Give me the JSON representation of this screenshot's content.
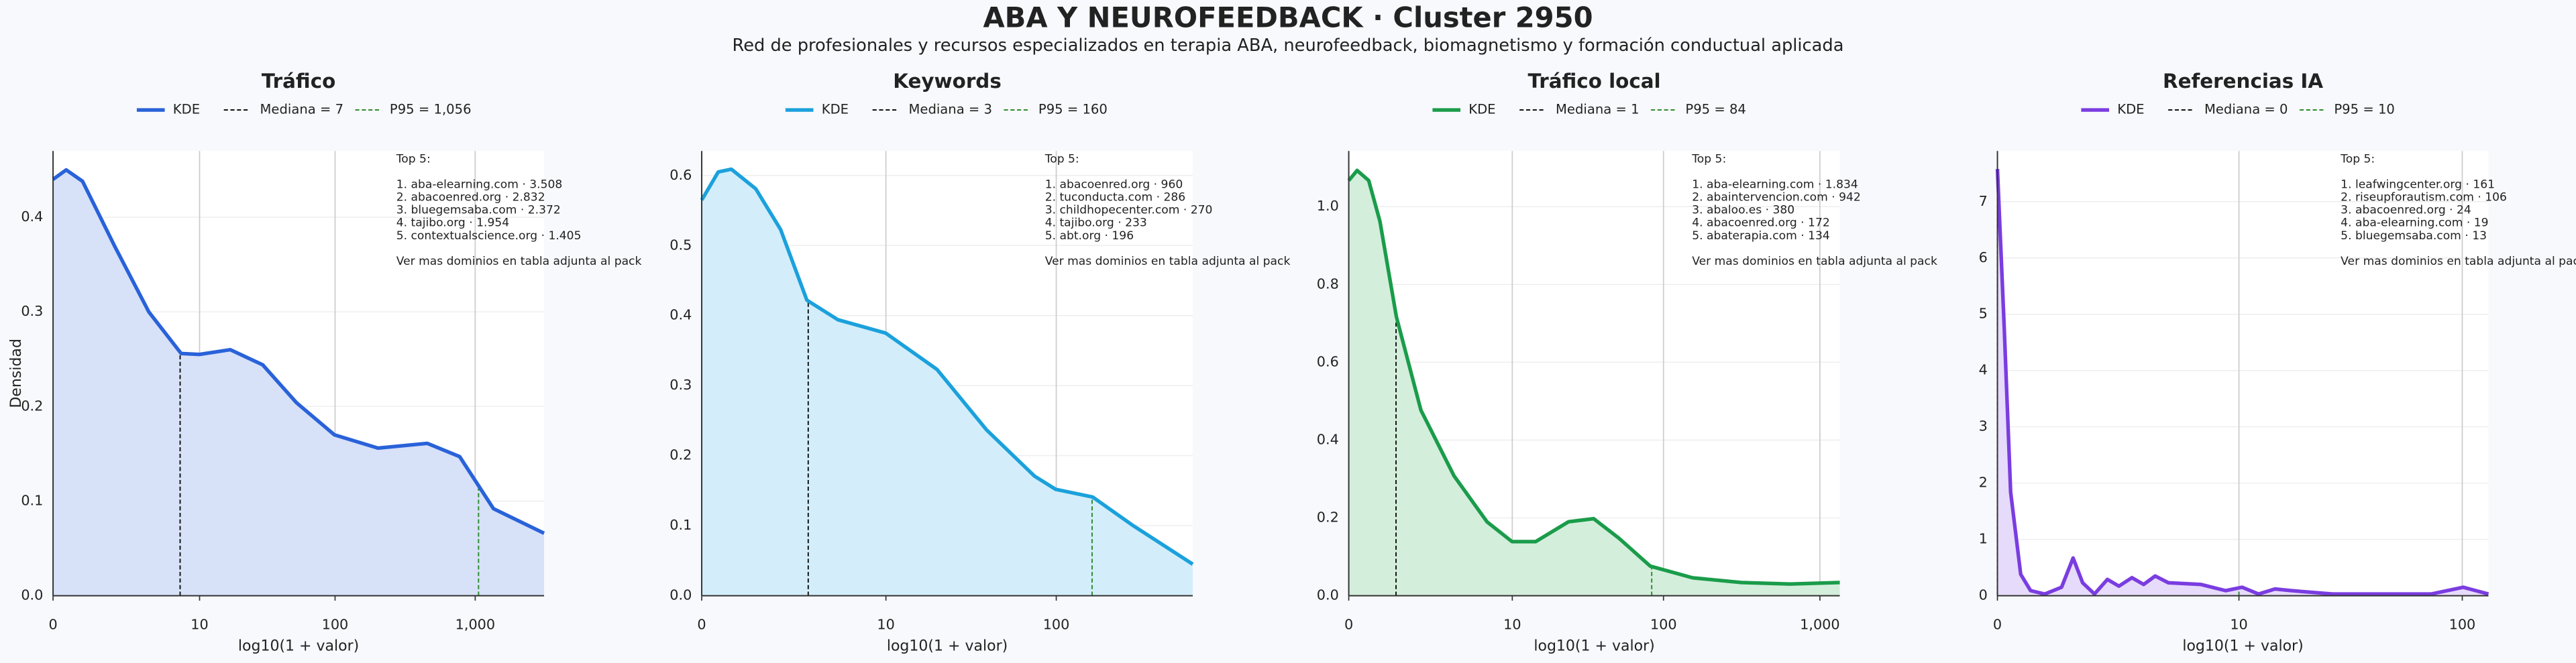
{
  "title": "ABA Y NEUROFEEDBACK · Cluster 2950",
  "subtitle": "Red de profesionales y recursos especializados en terapia ABA, neurofeedback, biomagnetismo y formación conductual aplicada",
  "chart_data": [
    {
      "type": "line",
      "title": "Tráfico",
      "xlabel": "log10(1 + valor)",
      "ylabel": "Densidad",
      "xscale": "log1p",
      "xlim": [
        0,
        3089
      ],
      "xticks": [
        0,
        10,
        100,
        {
          "value": 1000,
          "label": "1,000"
        }
      ],
      "ylim": [
        0,
        0.47
      ],
      "yticks": [
        {
          "value": 0,
          "label": "0.0"
        },
        0.1,
        0.2,
        0.3,
        0.4
      ],
      "grid": true,
      "x": [
        0,
        0.24,
        0.62,
        1.75,
        3.79,
        7.13,
        9.96,
        17.2,
        29.9,
        52.7,
        99,
        203,
        456,
        775,
        1348,
        3089
      ],
      "series": [
        {
          "name": "KDE",
          "color": "#2962d9",
          "fill": "#d7e1f8",
          "values": [
            0.44,
            0.45,
            0.438,
            0.369,
            0.3,
            0.256,
            0.255,
            0.26,
            0.244,
            0.204,
            0.17,
            0.156,
            0.161,
            0.147,
            0.092,
            0.066
          ]
        }
      ],
      "median": {
        "name": "Mediana = 7",
        "value": 7,
        "color": "#111111"
      },
      "p95": {
        "name": "P95 = 1,056",
        "value": 1056,
        "color": "#2e8b2e"
      },
      "annotation": {
        "title": "Top 5:",
        "lines": [
          "1. aba-elearning.com · 3.508",
          "2. abacoenred.org · 2.832",
          "3. bluegemsaba.com · 2.372",
          "4. tajibo.org · 1.954",
          "5. contextualscience.org · 1.405"
        ],
        "note": "Ver mas dominios en tabla adjunta al pack"
      }
    },
    {
      "type": "line",
      "title": "Keywords",
      "xlabel": "log10(1 + valor)",
      "xscale": "log1p",
      "xlim": [
        0,
        596
      ],
      "xticks": [
        0,
        10,
        100
      ],
      "ylim": [
        0,
        0.635
      ],
      "yticks": [
        {
          "value": 0,
          "label": "0.0"
        },
        0.1,
        0.2,
        0.3,
        0.4,
        0.5,
        0.6
      ],
      "grid": true,
      "x": [
        0,
        0.24,
        0.47,
        1.02,
        1.79,
        2.93,
        4.89,
        9.96,
        20.4,
        39.7,
        74.9,
        99,
        161,
        274,
        596
      ],
      "series": [
        {
          "name": "KDE",
          "color": "#1ba1dc",
          "fill": "#d3eefa",
          "values": [
            0.565,
            0.605,
            0.609,
            0.581,
            0.523,
            0.422,
            0.394,
            0.375,
            0.323,
            0.237,
            0.171,
            0.152,
            0.141,
            0.1,
            0.045
          ]
        }
      ],
      "median": {
        "name": "Mediana = 3",
        "value": 3,
        "color": "#111111"
      },
      "p95": {
        "name": "P95 = 160",
        "value": 160,
        "color": "#2e8b2e"
      },
      "annotation": {
        "title": "Top 5:",
        "lines": [
          "1. abacoenred.org · 960",
          "2. tuconducta.com · 286",
          "3. childhopecenter.com · 270",
          "4. tajibo.org · 233",
          "5. abt.org · 196"
        ],
        "note": "Ver mas dominios en tabla adjunta al pack"
      }
    },
    {
      "type": "line",
      "title": "Tráfico local",
      "xlabel": "log10(1 + valor)",
      "xscale": "log1p",
      "xlim": [
        0,
        1339
      ],
      "xticks": [
        0,
        10,
        100,
        {
          "value": 1000,
          "label": "1,000"
        }
      ],
      "ylim": [
        0,
        1.143
      ],
      "yticks": [
        {
          "value": 0,
          "label": "0.0"
        },
        0.2,
        0.4,
        0.6,
        0.8,
        {
          "value": 1,
          "label": "1.0"
        }
      ],
      "grid": true,
      "x": [
        0,
        0.13,
        0.34,
        0.58,
        1.01,
        1.88,
        3.68,
        6.59,
        9.96,
        14.5,
        24.1,
        35.3,
        51.5,
        82.2,
        154,
        315,
        645,
        1339
      ],
      "series": [
        {
          "name": "KDE",
          "color": "#1a9c4a",
          "fill": "#d4eedc",
          "values": [
            1.067,
            1.093,
            1.067,
            0.962,
            0.717,
            0.477,
            0.308,
            0.19,
            0.139,
            0.139,
            0.19,
            0.198,
            0.148,
            0.076,
            0.046,
            0.034,
            0.03,
            0.034
          ]
        }
      ],
      "median": {
        "name": "Mediana = 1",
        "value": 1,
        "color": "#111111"
      },
      "p95": {
        "name": "P95 = 84",
        "value": 84,
        "color": "#2e8b2e"
      },
      "annotation": {
        "title": "Top 5:",
        "lines": [
          "1. aba-elearning.com · 1.834",
          "2. abaintervencion.com · 942",
          "3. abaloo.es · 380",
          "4. abacoenred.org · 172",
          "5. abaterapia.com · 134"
        ],
        "note": "Ver mas dominios en tabla adjunta al pack"
      }
    },
    {
      "type": "line",
      "title": "Referencias IA",
      "xlabel": "log10(1 + valor)",
      "xscale": "log1p",
      "xlim": [
        0,
        130
      ],
      "xticks": [
        0,
        10,
        100
      ],
      "ylim": [
        0,
        7.9
      ],
      "yticks": [
        0,
        1,
        2,
        3,
        4,
        5,
        6,
        7
      ],
      "grid": true,
      "x": [
        0,
        0.07,
        0.14,
        0.26,
        0.39,
        0.6,
        0.89,
        1.12,
        1.33,
        1.62,
        1.98,
        2.34,
        2.8,
        3.27,
        3.79,
        4.46,
        6.55,
        8.64,
        10.35,
        12.37,
        14.74,
        17.54,
        26.9,
        73.1,
        101,
        130
      ],
      "series": [
        {
          "name": "KDE",
          "color": "#7a3de0",
          "fill": "#e6dbfa",
          "values": [
            7.58,
            4.75,
            1.84,
            0.38,
            0.09,
            0.03,
            0.15,
            0.67,
            0.23,
            0.03,
            0.29,
            0.17,
            0.32,
            0.2,
            0.35,
            0.23,
            0.2,
            0.09,
            0.15,
            0.03,
            0.12,
            0.09,
            0.03,
            0.03,
            0.15,
            0.03
          ]
        }
      ],
      "median": {
        "name": "Mediana = 0",
        "value": 0,
        "color": "#111111"
      },
      "p95": {
        "name": "P95 = 10",
        "value": 10,
        "color": "#2e8b2e"
      },
      "annotation": {
        "title": "Top 5:",
        "lines": [
          "1. leafwingcenter.org · 161",
          "2. riseupforautism.com · 106",
          "3. abacoenred.org · 24",
          "4. aba-elearning.com · 19",
          "5. bluegemsaba.com · 13"
        ],
        "note": "Ver mas dominios en tabla adjunta al pack"
      }
    }
  ]
}
